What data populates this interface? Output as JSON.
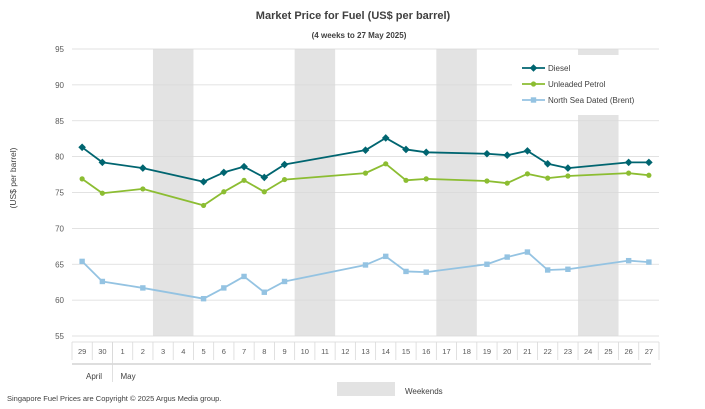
{
  "chart_data": {
    "type": "line",
    "title": "Market Price for Fuel  (US$  per barrel)",
    "subtitle": "(4 weeks to 27 May  2025)",
    "ylabel": "(US$ per barrel)",
    "ylim": [
      55,
      95
    ],
    "yticks": [
      55,
      60,
      65,
      70,
      75,
      80,
      85,
      90,
      95
    ],
    "grid": true,
    "legend_position": "top-right",
    "x": [
      "29",
      "30",
      "1",
      "2",
      "3",
      "4",
      "5",
      "6",
      "7",
      "8",
      "9",
      "10",
      "11",
      "12",
      "13",
      "14",
      "15",
      "16",
      "17",
      "18",
      "19",
      "20",
      "21",
      "22",
      "23",
      "24",
      "25",
      "26",
      "27"
    ],
    "month_labels": [
      "April",
      "May"
    ],
    "weekend_shading": [
      [
        "3",
        "4"
      ],
      [
        "10",
        "11"
      ],
      [
        "17",
        "18"
      ],
      [
        "24",
        "25"
      ]
    ],
    "weekend_legend_label": "Weekends",
    "series": [
      {
        "name": "Diesel",
        "color": "#006570",
        "marker": "diamond",
        "points": [
          [
            "29",
            81.3
          ],
          [
            "30",
            79.2
          ],
          [
            "2",
            78.4
          ],
          [
            "5",
            76.5
          ],
          [
            "6",
            77.8
          ],
          [
            "7",
            78.6
          ],
          [
            "8",
            77.1
          ],
          [
            "9",
            78.9
          ],
          [
            "13",
            80.9
          ],
          [
            "14",
            82.6
          ],
          [
            "15",
            81.0
          ],
          [
            "16",
            80.6
          ],
          [
            "19",
            80.4
          ],
          [
            "20",
            80.2
          ],
          [
            "21",
            80.8
          ],
          [
            "22",
            79.0
          ],
          [
            "23",
            78.4
          ],
          [
            "26",
            79.2
          ],
          [
            "27",
            79.2
          ]
        ]
      },
      {
        "name": "Unleaded Petrol",
        "color": "#8cbd32",
        "marker": "circle",
        "points": [
          [
            "29",
            76.9
          ],
          [
            "30",
            74.9
          ],
          [
            "2",
            75.5
          ],
          [
            "5",
            73.2
          ],
          [
            "6",
            75.1
          ],
          [
            "7",
            76.7
          ],
          [
            "8",
            75.1
          ],
          [
            "9",
            76.8
          ],
          [
            "13",
            77.7
          ],
          [
            "14",
            79.0
          ],
          [
            "15",
            76.7
          ],
          [
            "16",
            76.9
          ],
          [
            "19",
            76.6
          ],
          [
            "20",
            76.3
          ],
          [
            "21",
            77.6
          ],
          [
            "22",
            77.0
          ],
          [
            "23",
            77.3
          ],
          [
            "26",
            77.7
          ],
          [
            "27",
            77.4
          ]
        ]
      },
      {
        "name": "North Sea Dated (Brent)",
        "color": "#94c3e2",
        "marker": "square",
        "points": [
          [
            "29",
            65.4
          ],
          [
            "30",
            62.6
          ],
          [
            "2",
            61.7
          ],
          [
            "5",
            60.2
          ],
          [
            "6",
            61.7
          ],
          [
            "7",
            63.3
          ],
          [
            "8",
            61.1
          ],
          [
            "9",
            62.6
          ],
          [
            "13",
            64.9
          ],
          [
            "14",
            66.1
          ],
          [
            "15",
            64.0
          ],
          [
            "16",
            63.9
          ],
          [
            "19",
            65.0
          ],
          [
            "20",
            66.0
          ],
          [
            "21",
            66.7
          ],
          [
            "22",
            64.2
          ],
          [
            "23",
            64.3
          ],
          [
            "26",
            65.5
          ],
          [
            "27",
            65.3
          ]
        ]
      }
    ]
  },
  "footer": {
    "copyright": "Singapore  Fuel Prices are Copyright  © 2025  Argus Media group."
  }
}
